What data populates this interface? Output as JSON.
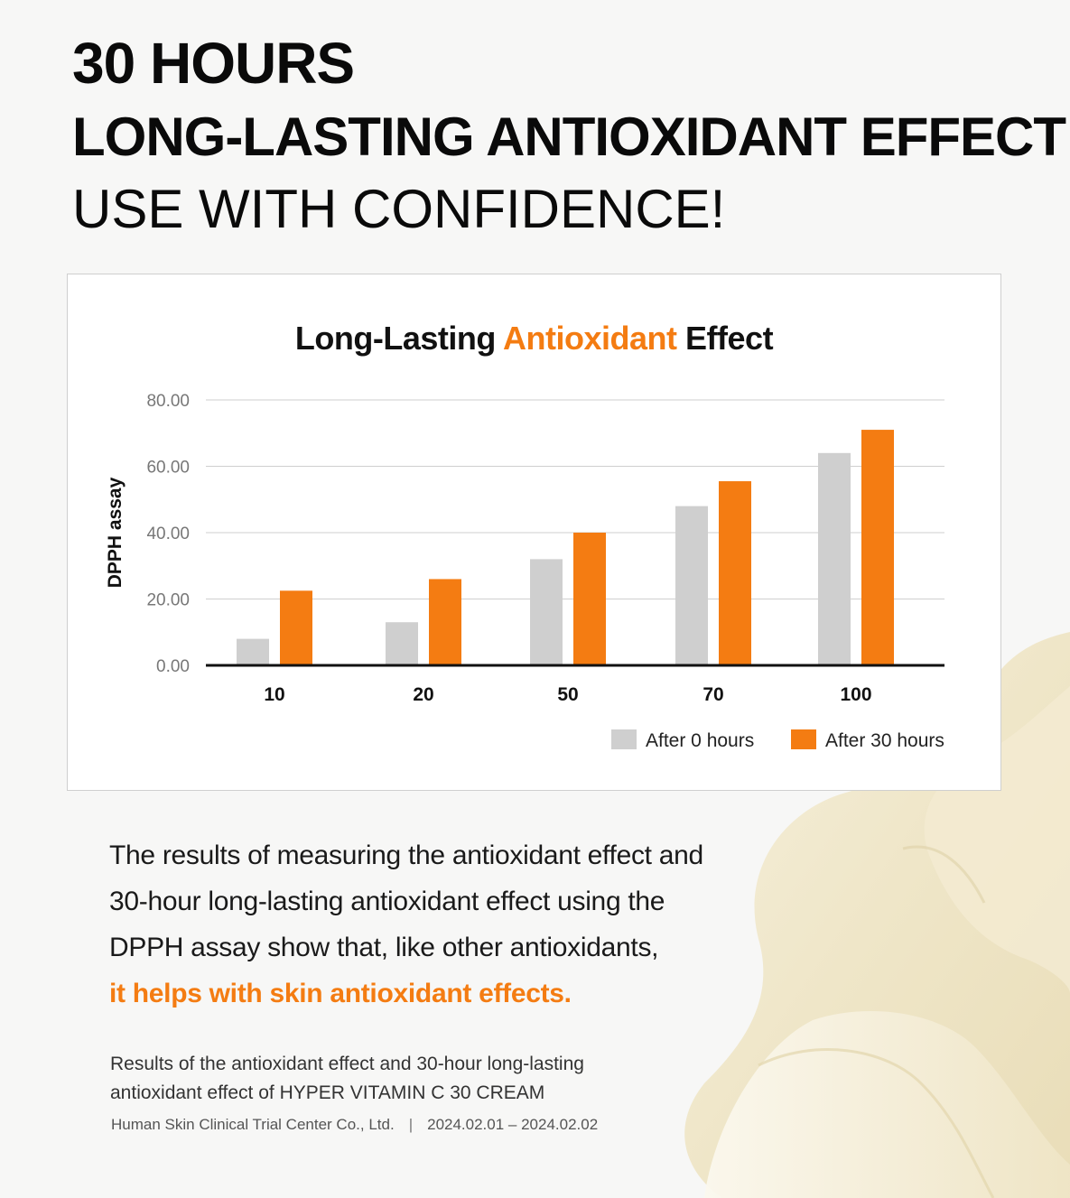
{
  "headline": {
    "line1": "30 HOURS",
    "line2": "LONG-LASTING ANTIOXIDANT EFFECT",
    "line3": "USE WITH CONFIDENCE!"
  },
  "colors": {
    "accent": "#f47c12",
    "bar_after_0": "#cfcfcf",
    "bar_after_30": "#f47c12",
    "text": "#111111",
    "background": "#f7f7f6"
  },
  "chart_data": {
    "type": "bar",
    "title": "Long-Lasting Antioxidant Effect",
    "title_parts": {
      "before": "Long-Lasting ",
      "accent": "Antioxidant",
      "after": " Effect"
    },
    "xlabel": "",
    "ylabel": "DPPH assay",
    "categories": [
      "10",
      "20",
      "50",
      "70",
      "100"
    ],
    "ylim": [
      0,
      80
    ],
    "yticks": [
      "0.00",
      "20.00",
      "40.00",
      "60.00",
      "80.00"
    ],
    "grid": true,
    "legend_position": "bottom-right",
    "series": [
      {
        "name": "After 0 hours",
        "color": "#cfcfcf",
        "values": [
          8,
          13,
          32,
          48,
          64
        ]
      },
      {
        "name": "After 30 hours",
        "color": "#f47c12",
        "values": [
          22.5,
          26,
          40,
          55.5,
          71
        ]
      }
    ]
  },
  "body": {
    "line1": "The results of measuring the antioxidant effect and",
    "line2": "30-hour long-lasting antioxidant effect using the",
    "line3": "DPPH assay show that, like other antioxidants,",
    "highlight": "it helps with skin antioxidant effects."
  },
  "source": {
    "line1": "Results of the antioxidant effect and 30-hour long-lasting",
    "line2": "antioxidant effect of HYPER VITAMIN C 30 CREAM"
  },
  "credit": {
    "org": "Human Skin Clinical Trial Center Co., Ltd.",
    "separator": "|",
    "dates": "2024.02.01 – 2024.02.02"
  }
}
